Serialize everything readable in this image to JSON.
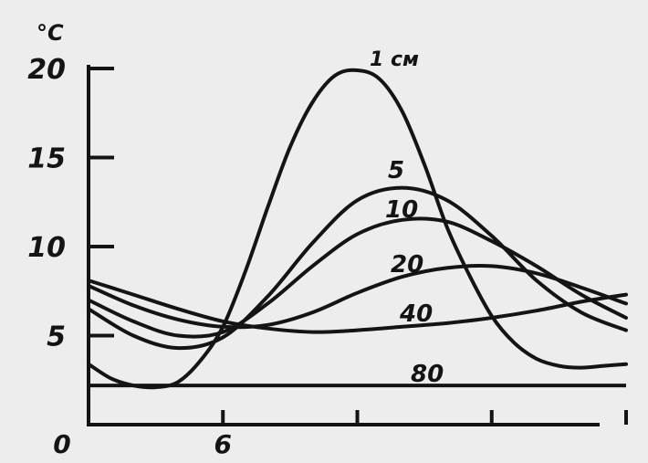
{
  "chart_data": {
    "type": "line",
    "ylabel": "°C",
    "ylim": [
      0,
      20
    ],
    "yticks": [
      {
        "value": 5,
        "label": "5"
      },
      {
        "value": 10,
        "label": "10"
      },
      {
        "value": 15,
        "label": "15"
      },
      {
        "value": 20,
        "label": "20"
      }
    ],
    "xlim": [
      0,
      24
    ],
    "xticks": [
      {
        "value": 0,
        "label": "0"
      },
      {
        "value": 6,
        "label": "6"
      },
      {
        "value": 12,
        "label": ""
      },
      {
        "value": 18,
        "label": ""
      },
      {
        "value": 24,
        "label": ""
      }
    ],
    "series": [
      {
        "name": "1 см",
        "x": [
          0,
          1,
          2,
          3,
          4,
          5,
          6,
          7,
          8,
          9,
          10,
          11,
          12,
          13,
          14,
          15,
          16,
          17,
          18,
          19,
          20,
          21,
          22,
          23,
          24
        ],
        "y": [
          3.4,
          2.6,
          2.2,
          2.1,
          2.4,
          3.6,
          5.5,
          8.6,
          12.2,
          15.6,
          18.1,
          19.6,
          19.9,
          19.4,
          17.6,
          14.6,
          11.1,
          8.4,
          6.1,
          4.6,
          3.7,
          3.3,
          3.2,
          3.3,
          3.4
        ]
      },
      {
        "name": "5",
        "x": [
          0,
          2,
          4,
          6,
          8,
          10,
          12,
          14,
          16,
          18,
          20,
          22,
          24
        ],
        "y": [
          6.5,
          5.0,
          4.3,
          4.9,
          7.2,
          10.2,
          12.6,
          13.3,
          12.6,
          10.6,
          8.1,
          6.3,
          5.3
        ]
      },
      {
        "name": "10",
        "x": [
          0,
          2,
          4,
          6,
          8,
          10,
          12,
          14,
          16,
          18,
          20,
          22,
          24
        ],
        "y": [
          7.0,
          5.8,
          5.0,
          5.2,
          6.8,
          8.9,
          10.7,
          11.5,
          11.4,
          10.3,
          8.9,
          7.3,
          6.0
        ]
      },
      {
        "name": "20",
        "x": [
          0,
          2,
          4,
          6,
          8,
          10,
          12,
          14,
          16,
          18,
          20,
          22,
          24
        ],
        "y": [
          7.8,
          6.7,
          5.9,
          5.5,
          5.6,
          6.3,
          7.4,
          8.3,
          8.8,
          8.9,
          8.5,
          7.7,
          6.8
        ]
      },
      {
        "name": "40",
        "x": [
          0,
          2,
          4,
          6,
          8,
          10,
          12,
          14,
          16,
          18,
          20,
          22,
          24
        ],
        "y": [
          8.1,
          7.3,
          6.5,
          5.8,
          5.4,
          5.2,
          5.3,
          5.5,
          5.7,
          6.0,
          6.4,
          6.9,
          7.3
        ]
      },
      {
        "name": "80",
        "x": [
          0,
          24
        ],
        "y": [
          2.2,
          2.2
        ]
      }
    ],
    "series_labels": [
      "1 см",
      "5",
      "10",
      "20",
      "40",
      "80"
    ],
    "grid": false
  }
}
